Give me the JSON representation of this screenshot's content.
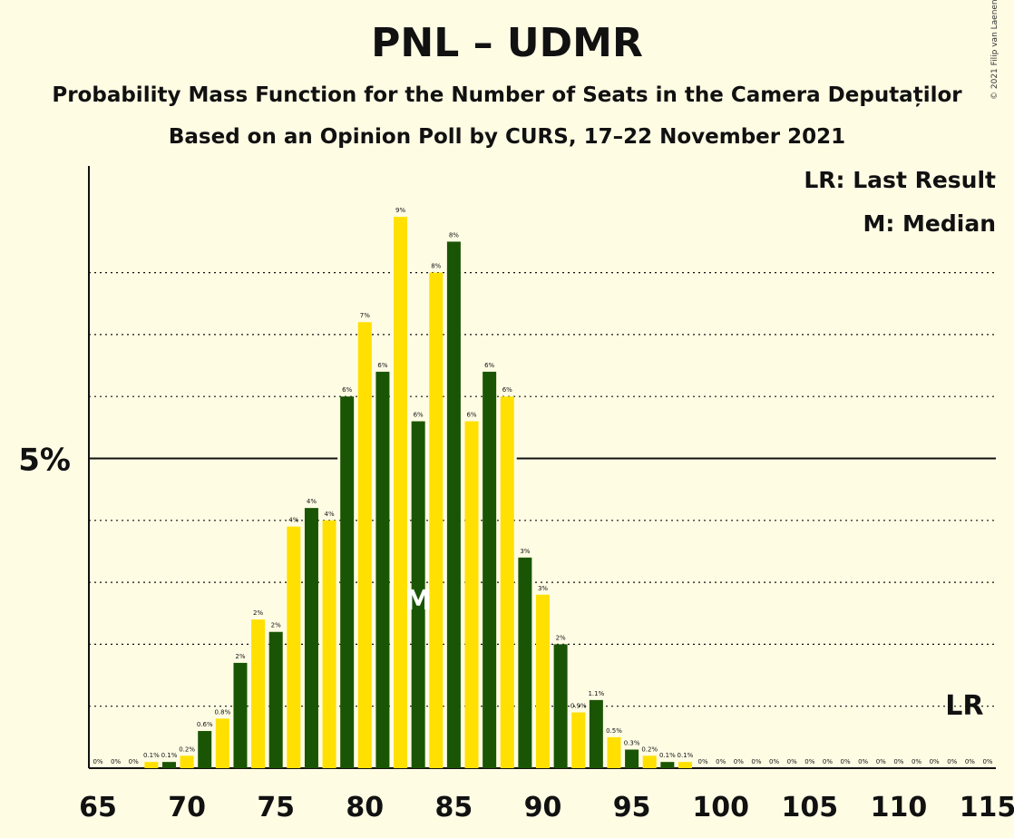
{
  "title": "PNL – UDMR",
  "subtitle_1": "Probability Mass Function for the Number of Seats in the Camera Deputaților",
  "subtitle_2": "Based on an Opinion Poll by CURS, 17–22 November 2021",
  "copyright": "© 2021 Filip van Laenen",
  "legend": {
    "lr": "LR: Last Result",
    "m": "M: Median"
  },
  "y_tick_label": "5%",
  "median_marker": "M",
  "last_result_marker": "LR",
  "colors": {
    "dark": "#1A5505",
    "light": "#FFE000",
    "background": "#FFFCE4"
  },
  "chart_data": {
    "type": "bar",
    "title": "PNL – UDMR",
    "xlabel": "",
    "ylabel": "",
    "x": [
      65,
      66,
      67,
      68,
      69,
      70,
      71,
      72,
      73,
      74,
      75,
      76,
      77,
      78,
      79,
      80,
      81,
      82,
      83,
      84,
      85,
      86,
      87,
      88,
      89,
      90,
      91,
      92,
      93,
      94,
      95,
      96,
      97,
      98,
      99,
      100,
      101,
      102,
      103,
      104,
      105,
      106,
      107,
      108,
      109,
      110,
      111,
      112,
      113,
      114,
      115
    ],
    "values": [
      0,
      0,
      0,
      0.1,
      0.1,
      0.2,
      0.6,
      0.8,
      1.7,
      2.4,
      2.2,
      3.9,
      4.2,
      4.0,
      6.0,
      7.2,
      6.4,
      8.9,
      5.6,
      8.0,
      8.5,
      5.6,
      6.4,
      6.0,
      3.4,
      2.8,
      2.0,
      0.9,
      1.1,
      0.5,
      0.3,
      0.2,
      0.1,
      0.1,
      0,
      0,
      0,
      0,
      0,
      0,
      0,
      0,
      0,
      0,
      0,
      0,
      0,
      0,
      0,
      0,
      0
    ],
    "labels": [
      "0%",
      "0%",
      "0%",
      "0.1%",
      "0.1%",
      "0.2%",
      "0.6%",
      "0.8%",
      "2%",
      "2%",
      "2%",
      "4%",
      "4%",
      "4%",
      "6%",
      "7%",
      "6%",
      "9%",
      "6%",
      "8%",
      "8%",
      "6%",
      "6%",
      "6%",
      "3%",
      "3%",
      "2%",
      "0.9%",
      "1.1%",
      "0.5%",
      "0.3%",
      "0.2%",
      "0.1%",
      "0.1%",
      "0%",
      "0%",
      "0%",
      "0%",
      "0%",
      "0%",
      "0%",
      "0%",
      "0%",
      "0%",
      "0%",
      "0%",
      "0%",
      "0%",
      "0%",
      "0%",
      "0%"
    ],
    "x_ticks": [
      65,
      70,
      75,
      80,
      85,
      90,
      95,
      100,
      105,
      110,
      115
    ],
    "x_tick_labels": [
      "65",
      "70",
      "75",
      "80",
      "85",
      "90",
      "95",
      "100",
      "105",
      "110",
      "115"
    ],
    "ylim": [
      0,
      9.4
    ],
    "y_gridlines": [
      1,
      2,
      3,
      4,
      6,
      7,
      8
    ],
    "y_major": 5,
    "median": 83,
    "last_result": 114,
    "bar_colors": "dark for odd seat counts, yellow for even seat counts",
    "grid": "dotted horizontal lines, solid line at 5%"
  }
}
